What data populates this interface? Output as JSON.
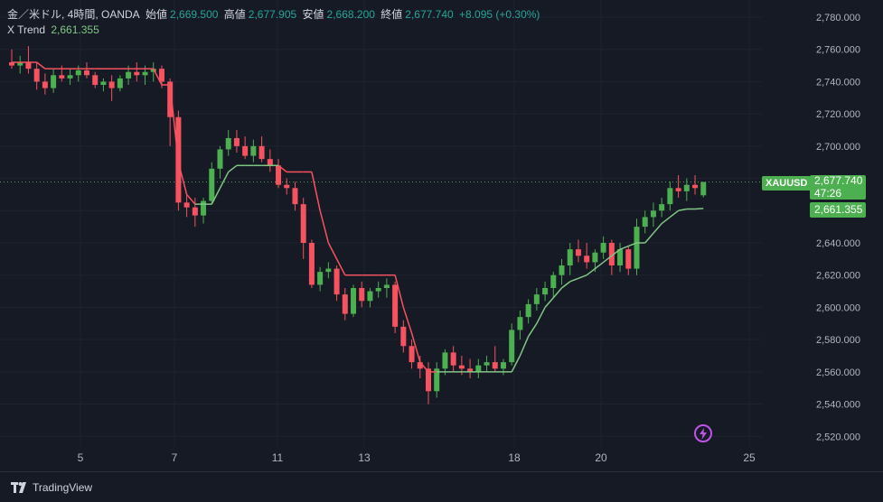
{
  "legend": {
    "symbol": "金／米ドル, 4時間, OANDA",
    "open_label": "始値",
    "open": "2,669.500",
    "high_label": "高値",
    "high": "2,677.905",
    "low_label": "安値",
    "low": "2,668.200",
    "close_label": "終値",
    "close": "2,677.740",
    "change": "+8.095 (+0.30%)",
    "indicator_name": "X Trend",
    "indicator_value": "2,661.355"
  },
  "price_axis": {
    "ticks": [
      "2,780.000",
      "2,760.000",
      "2,740.000",
      "2,720.000",
      "2,700.000",
      "2,680.000",
      "2,660.000",
      "2,640.000",
      "2,620.000",
      "2,600.000",
      "2,580.000",
      "2,560.000",
      "2,540.000",
      "2,520.000"
    ]
  },
  "time_axis": {
    "ticks": [
      "5",
      "7",
      "11",
      "13",
      "18",
      "20",
      "25"
    ]
  },
  "tags": {
    "symbol": "XAUUSD",
    "last_price": "2,677.740",
    "countdown": "47:26",
    "trend_value": "2,661.355"
  },
  "footer": {
    "brand": "TradingView"
  },
  "colors": {
    "up": "#4caf50",
    "down": "#f7525f",
    "neutral": "#f59e0b",
    "trend_up": "#81c784",
    "trend_down": "#f7525f",
    "background": "#161a25"
  },
  "chart_data": {
    "type": "candlestick",
    "ylim": [
      2515,
      2785
    ],
    "x_ticks": [
      "5",
      "7",
      "11",
      "13",
      "18",
      "20",
      "25"
    ],
    "candles": [
      [
        2752,
        2760,
        2748,
        2750
      ],
      [
        2750,
        2756,
        2745,
        2752
      ],
      [
        2752,
        2762,
        2745,
        2748
      ],
      [
        2748,
        2752,
        2735,
        2740
      ],
      [
        2740,
        2745,
        2732,
        2736
      ],
      [
        2736,
        2748,
        2733,
        2744
      ],
      [
        2744,
        2750,
        2740,
        2742
      ],
      [
        2742,
        2748,
        2738,
        2744
      ],
      [
        2744,
        2750,
        2740,
        2747
      ],
      [
        2747,
        2752,
        2742,
        2744
      ],
      [
        2744,
        2746,
        2736,
        2738
      ],
      [
        2738,
        2742,
        2734,
        2740
      ],
      [
        2740,
        2744,
        2728,
        2736
      ],
      [
        2736,
        2744,
        2734,
        2742
      ],
      [
        2742,
        2750,
        2738,
        2746
      ],
      [
        2746,
        2752,
        2740,
        2744
      ],
      [
        2744,
        2750,
        2738,
        2746
      ],
      [
        2746,
        2752,
        2740,
        2748
      ],
      [
        2748,
        2750,
        2736,
        2740
      ],
      [
        2740,
        2742,
        2700,
        2718
      ],
      [
        2718,
        2722,
        2660,
        2665
      ],
      [
        2665,
        2670,
        2656,
        2662
      ],
      [
        2662,
        2668,
        2650,
        2657
      ],
      [
        2657,
        2668,
        2652,
        2666
      ],
      [
        2666,
        2690,
        2664,
        2686
      ],
      [
        2686,
        2700,
        2680,
        2698
      ],
      [
        2698,
        2710,
        2694,
        2705
      ],
      [
        2705,
        2710,
        2696,
        2700
      ],
      [
        2700,
        2706,
        2692,
        2694
      ],
      [
        2694,
        2704,
        2690,
        2700
      ],
      [
        2700,
        2706,
        2690,
        2692
      ],
      [
        2692,
        2698,
        2684,
        2688
      ],
      [
        2688,
        2692,
        2674,
        2676
      ],
      [
        2676,
        2680,
        2670,
        2674
      ],
      [
        2674,
        2678,
        2660,
        2664
      ],
      [
        2664,
        2668,
        2630,
        2640
      ],
      [
        2640,
        2642,
        2612,
        2614
      ],
      [
        2614,
        2625,
        2610,
        2622
      ],
      [
        2622,
        2628,
        2618,
        2624
      ],
      [
        2624,
        2626,
        2604,
        2608
      ],
      [
        2608,
        2612,
        2592,
        2596
      ],
      [
        2596,
        2614,
        2594,
        2612
      ],
      [
        2612,
        2616,
        2600,
        2604
      ],
      [
        2604,
        2612,
        2600,
        2610
      ],
      [
        2610,
        2616,
        2606,
        2612
      ],
      [
        2612,
        2618,
        2606,
        2614
      ],
      [
        2614,
        2616,
        2584,
        2588
      ],
      [
        2588,
        2592,
        2572,
        2576
      ],
      [
        2576,
        2580,
        2562,
        2566
      ],
      [
        2566,
        2570,
        2556,
        2562
      ],
      [
        2562,
        2566,
        2540,
        2548
      ],
      [
        2548,
        2566,
        2544,
        2562
      ],
      [
        2562,
        2574,
        2558,
        2572
      ],
      [
        2572,
        2576,
        2560,
        2564
      ],
      [
        2564,
        2570,
        2558,
        2562
      ],
      [
        2562,
        2568,
        2556,
        2560
      ],
      [
        2560,
        2568,
        2556,
        2564
      ],
      [
        2564,
        2570,
        2560,
        2566
      ],
      [
        2566,
        2576,
        2560,
        2562
      ],
      [
        2562,
        2568,
        2558,
        2566
      ],
      [
        2566,
        2590,
        2564,
        2586
      ],
      [
        2586,
        2598,
        2580,
        2594
      ],
      [
        2594,
        2605,
        2590,
        2602
      ],
      [
        2602,
        2612,
        2598,
        2608
      ],
      [
        2608,
        2616,
        2604,
        2612
      ],
      [
        2612,
        2622,
        2606,
        2620
      ],
      [
        2620,
        2630,
        2614,
        2626
      ],
      [
        2626,
        2640,
        2620,
        2636
      ],
      [
        2636,
        2642,
        2628,
        2632
      ],
      [
        2632,
        2640,
        2624,
        2628
      ],
      [
        2628,
        2636,
        2622,
        2634
      ],
      [
        2634,
        2644,
        2630,
        2640
      ],
      [
        2640,
        2642,
        2620,
        2626
      ],
      [
        2626,
        2640,
        2622,
        2636
      ],
      [
        2636,
        2638,
        2620,
        2624
      ],
      [
        2624,
        2655,
        2620,
        2650
      ],
      [
        2650,
        2660,
        2646,
        2656
      ],
      [
        2656,
        2665,
        2650,
        2660
      ],
      [
        2660,
        2668,
        2656,
        2664
      ],
      [
        2664,
        2678,
        2660,
        2674
      ],
      [
        2674,
        2682,
        2668,
        2672
      ],
      [
        2672,
        2680,
        2666,
        2676
      ],
      [
        2676,
        2682,
        2670,
        2674
      ],
      [
        2669.5,
        2677.905,
        2668.2,
        2677.74
      ]
    ],
    "x_trend": [
      2752,
      2752,
      2752,
      2752,
      2748,
      2748,
      2748,
      2748,
      2748,
      2748,
      2748,
      2748,
      2748,
      2748,
      2748,
      2748,
      2748,
      2748,
      2738,
      2738,
      2690,
      2670,
      2664,
      2664,
      2664,
      2674,
      2684,
      2688,
      2688,
      2688,
      2688,
      2688,
      2688,
      2684,
      2684,
      2684,
      2684,
      2660,
      2640,
      2630,
      2620,
      2620,
      2620,
      2620,
      2620,
      2620,
      2620,
      2600,
      2584,
      2566,
      2560,
      2560,
      2560,
      2560,
      2560,
      2560,
      2560,
      2560,
      2560,
      2560,
      2560,
      2570,
      2582,
      2590,
      2600,
      2606,
      2612,
      2616,
      2618,
      2620,
      2624,
      2628,
      2632,
      2636,
      2638,
      2640,
      2640,
      2646,
      2652,
      2656,
      2660,
      2661,
      2661,
      2661.355
    ],
    "x_trend_state": [
      "down",
      "down",
      "down",
      "down",
      "down",
      "down",
      "down",
      "down",
      "down",
      "down",
      "down",
      "down",
      "down",
      "down",
      "down",
      "down",
      "down",
      "down",
      "down",
      "down",
      "down",
      "down",
      "down",
      "up",
      "up",
      "up",
      "up",
      "up",
      "up",
      "up",
      "up",
      "up",
      "up",
      "down",
      "down",
      "down",
      "down",
      "down",
      "down",
      "down",
      "down",
      "down",
      "down",
      "down",
      "down",
      "down",
      "down",
      "down",
      "down",
      "down",
      "down",
      "down",
      "up",
      "up",
      "up",
      "up",
      "up",
      "up",
      "up",
      "up",
      "up",
      "up",
      "up",
      "up",
      "up",
      "up",
      "up",
      "up",
      "up",
      "up",
      "up",
      "up",
      "up",
      "up",
      "up",
      "up",
      "up",
      "up",
      "up",
      "up",
      "up",
      "up",
      "up",
      "up"
    ]
  }
}
